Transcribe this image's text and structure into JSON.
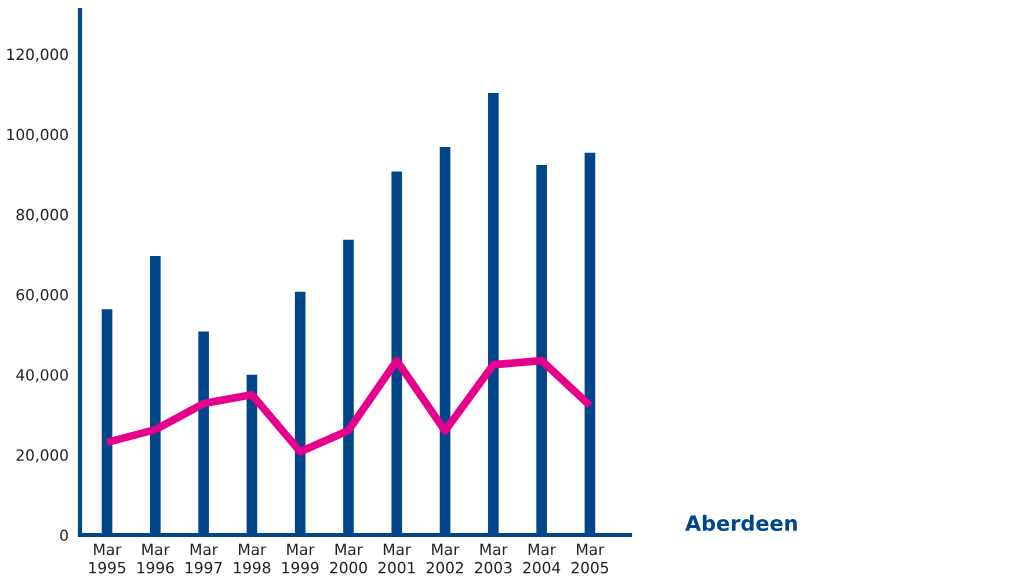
{
  "chart_data": {
    "type": "bar",
    "title": "Aberdeen",
    "categories": [
      "Mar\n1995",
      "Mar\n1996",
      "Mar\n1997",
      "Mar\n1998",
      "Mar\n1999",
      "Mar\n2000",
      "Mar\n2001",
      "Mar\n2002",
      "Mar\n2003",
      "Mar\n2004",
      "Mar\n2005"
    ],
    "series": [
      {
        "color": "#00468b",
        "values": [
          56300,
          69600,
          50800,
          40000,
          60700,
          73700,
          90700,
          96800,
          110300,
          92300,
          95400
        ]
      },
      {
        "type": "line",
        "color": "#e6008c",
        "values": [
          23100,
          26300,
          32800,
          35000,
          20800,
          26100,
          43500,
          26000,
          42500,
          43500,
          32300
        ]
      }
    ],
    "ylim": [
      0,
      131000
    ],
    "yticks": [
      0,
      {
        "value": 20000,
        "label": "20,000"
      },
      {
        "value": 40000,
        "label": "40,000"
      },
      {
        "value": 60000,
        "label": "60,000"
      },
      {
        "value": 80000,
        "label": "80,000"
      },
      {
        "value": 100000,
        "label": "100,000"
      },
      {
        "value": 120000,
        "label": "120,000"
      }
    ],
    "grid": false,
    "line_style": "solid"
  }
}
